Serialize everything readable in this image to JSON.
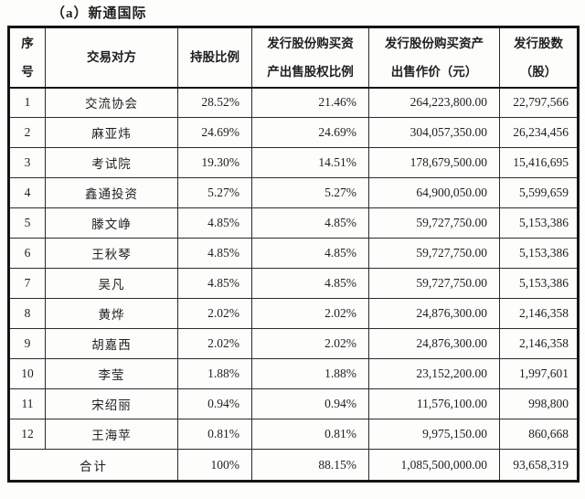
{
  "page": {
    "title": "（a）新通国际"
  },
  "table": {
    "headers": {
      "no": "序\n号",
      "counterparty": "交易对方",
      "holding_ratio": "持股比例",
      "sell_ratio": "发行股份购买资\n产出售股权比例",
      "price": "发行股份购买资产\n出售作价（元）",
      "shares": "发行股数\n（股）"
    },
    "rows": [
      {
        "no": "1",
        "name": "交流协会",
        "holding_pct": "28.52%",
        "sell_pct": "21.46%",
        "price": "264,223,800.00",
        "shares": "22,797,566"
      },
      {
        "no": "2",
        "name": "麻亚炜",
        "holding_pct": "24.69%",
        "sell_pct": "24.69%",
        "price": "304,057,350.00",
        "shares": "26,234,456"
      },
      {
        "no": "3",
        "name": "考试院",
        "holding_pct": "19.30%",
        "sell_pct": "14.51%",
        "price": "178,679,500.00",
        "shares": "15,416,695"
      },
      {
        "no": "4",
        "name": "鑫通投资",
        "holding_pct": "5.27%",
        "sell_pct": "5.27%",
        "price": "64,900,050.00",
        "shares": "5,599,659"
      },
      {
        "no": "5",
        "name": "滕文峥",
        "holding_pct": "4.85%",
        "sell_pct": "4.85%",
        "price": "59,727,750.00",
        "shares": "5,153,386"
      },
      {
        "no": "6",
        "name": "王秋琴",
        "holding_pct": "4.85%",
        "sell_pct": "4.85%",
        "price": "59,727,750.00",
        "shares": "5,153,386"
      },
      {
        "no": "7",
        "name": "吴凡",
        "holding_pct": "4.85%",
        "sell_pct": "4.85%",
        "price": "59,727,750.00",
        "shares": "5,153,386"
      },
      {
        "no": "8",
        "name": "黄烨",
        "holding_pct": "2.02%",
        "sell_pct": "2.02%",
        "price": "24,876,300.00",
        "shares": "2,146,358"
      },
      {
        "no": "9",
        "name": "胡嘉西",
        "holding_pct": "2.02%",
        "sell_pct": "2.02%",
        "price": "24,876,300.00",
        "shares": "2,146,358"
      },
      {
        "no": "10",
        "name": "李莹",
        "holding_pct": "1.88%",
        "sell_pct": "1.88%",
        "price": "23,152,200.00",
        "shares": "1,997,601"
      },
      {
        "no": "11",
        "name": "宋绍丽",
        "holding_pct": "0.94%",
        "sell_pct": "0.94%",
        "price": "11,576,100.00",
        "shares": "998,800"
      },
      {
        "no": "12",
        "name": "王海苹",
        "holding_pct": "0.81%",
        "sell_pct": "0.81%",
        "price": "9,975,150.00",
        "shares": "860,668"
      }
    ],
    "total": {
      "label": "合计",
      "holding_pct": "100%",
      "sell_pct": "88.15%",
      "price": "1,085,500,000.00",
      "shares": "93,658,319"
    }
  }
}
